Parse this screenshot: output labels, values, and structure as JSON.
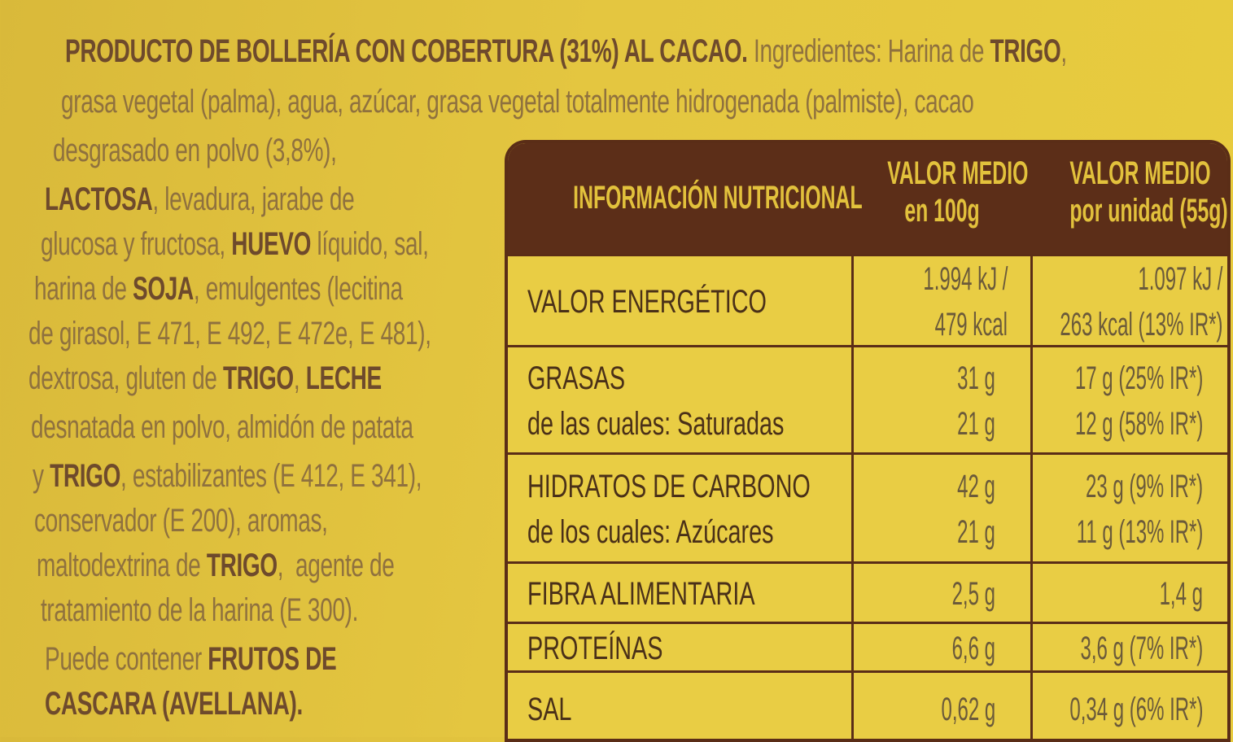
{
  "ingredients": [
    [
      {
        "t": "PRODUCTO DE BOLLERÍA CON COBERTURA (31%) AL CACAO.",
        "b": true
      },
      {
        "t": " Ingredientes: Harina de ",
        "b": false
      },
      {
        "t": "TRIGO",
        "b": true
      },
      {
        "t": ",",
        "b": false
      }
    ],
    [
      {
        "t": "grasa vegetal (palma), agua, azúcar, grasa vegetal totalmente hidrogenada (palmiste), cacao",
        "b": false
      }
    ],
    [
      {
        "t": "desgrasado en polvo (3,8%),",
        "b": false
      }
    ],
    [
      {
        "t": "LACTOSA",
        "b": true
      },
      {
        "t": ", levadura, jarabe de",
        "b": false
      }
    ],
    [
      {
        "t": "glucosa y fructosa, ",
        "b": false
      },
      {
        "t": "HUEVO",
        "b": true
      },
      {
        "t": " líquido, sal,",
        "b": false
      }
    ],
    [
      {
        "t": "harina de ",
        "b": false
      },
      {
        "t": "SOJA",
        "b": true
      },
      {
        "t": ", emulgentes (lecitina",
        "b": false
      }
    ],
    [
      {
        "t": "de girasol, E 471, E 492, E 472e, E 481),",
        "b": false
      }
    ],
    [
      {
        "t": "dextrosa, gluten de ",
        "b": false
      },
      {
        "t": "TRIGO",
        "b": true
      },
      {
        "t": ", ",
        "b": false
      },
      {
        "t": "LECHE",
        "b": true
      }
    ],
    [
      {
        "t": "desnatada en polvo, almidón de patata",
        "b": false
      }
    ],
    [
      {
        "t": "y ",
        "b": false
      },
      {
        "t": "TRIGO",
        "b": true
      },
      {
        "t": ", estabilizantes (E 412, E 341),",
        "b": false
      }
    ],
    [
      {
        "t": "conservador (E 200), aromas,",
        "b": false
      }
    ],
    [
      {
        "t": "maltodextrina de ",
        "b": false
      },
      {
        "t": "TRIGO",
        "b": true
      },
      {
        "t": ",  agente de",
        "b": false
      }
    ],
    [
      {
        "t": "tratamiento de la harina (E 300).",
        "b": false
      }
    ],
    [
      {
        "t": "Puede contener ",
        "b": false
      },
      {
        "t": "FRUTOS DE",
        "b": true
      }
    ],
    [
      {
        "t": "CASCARA (AVELLANA).",
        "b": true
      }
    ]
  ],
  "nutrition": {
    "header": {
      "title": "INFORMACIÓN NUTRICIONAL",
      "col1": [
        "VALOR MEDIO",
        "en 100g"
      ],
      "col2": [
        "VALOR MEDIO",
        "por unidad (55g)"
      ]
    },
    "rows": [
      {
        "label": [
          "VALOR ENERGÉTICO"
        ],
        "v100": [
          "1.994 kJ /",
          "479 kcal"
        ],
        "vunit": [
          "1.097 kJ /",
          "263 kcal (13% IR*)"
        ]
      },
      {
        "label": [
          "GRASAS",
          "de las cuales: Saturadas"
        ],
        "v100": [
          "31 g",
          "21 g"
        ],
        "vunit": [
          "17 g (25% IR*)",
          "12 g (58% IR*)"
        ]
      },
      {
        "label": [
          "HIDRATOS DE CARBONO",
          "de los cuales: Azúcares"
        ],
        "v100": [
          "42 g",
          "21 g"
        ],
        "vunit": [
          "23 g (9% IR*)",
          "11 g (13% IR*)"
        ]
      },
      {
        "label": [
          "FIBRA ALIMENTARIA"
        ],
        "v100": [
          "2,5 g"
        ],
        "vunit": [
          "1,4 g"
        ]
      },
      {
        "label": [
          "PROTEÍNAS"
        ],
        "v100": [
          "6,6 g"
        ],
        "vunit": [
          "3,6 g (7% IR*)"
        ]
      },
      {
        "label": [
          "SAL"
        ],
        "v100": [
          "0,62 g"
        ],
        "vunit": [
          "0,34 g (6% IR*)"
        ]
      }
    ]
  },
  "colors": {
    "background": "#e4c640",
    "table_header": "#5c2e18",
    "text": "#6e4a2c"
  }
}
